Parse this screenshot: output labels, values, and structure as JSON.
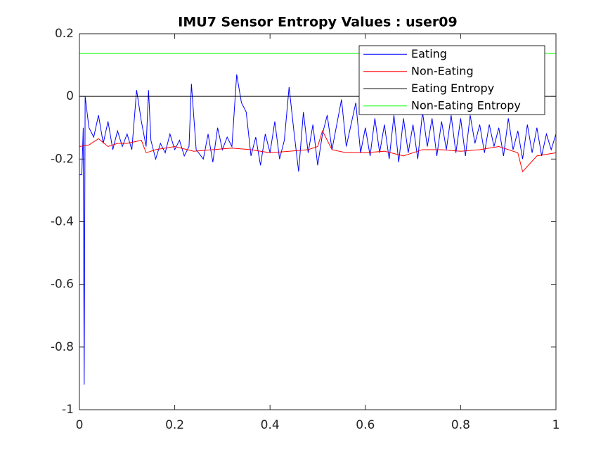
{
  "chart_data": {
    "type": "line",
    "title": "IMU7 Sensor Entropy Values : user09",
    "xlim": [
      0,
      1
    ],
    "ylim": [
      -1,
      0.2
    ],
    "xticks": [
      0,
      0.2,
      0.4,
      0.6,
      0.8,
      1
    ],
    "yticks": [
      -1,
      -0.8,
      -0.6,
      -0.4,
      -0.2,
      0,
      0.2
    ],
    "grid": false,
    "legend": "northeast",
    "series": [
      {
        "name": "Eating",
        "color": "#0000ff",
        "x": [
          0,
          0.005,
          0.008,
          0.01,
          0.012,
          0.02,
          0.03,
          0.04,
          0.05,
          0.06,
          0.07,
          0.08,
          0.09,
          0.1,
          0.11,
          0.12,
          0.13,
          0.14,
          0.145,
          0.15,
          0.16,
          0.17,
          0.18,
          0.19,
          0.2,
          0.21,
          0.22,
          0.23,
          0.235,
          0.245,
          0.26,
          0.27,
          0.28,
          0.29,
          0.3,
          0.31,
          0.32,
          0.33,
          0.34,
          0.35,
          0.36,
          0.37,
          0.38,
          0.39,
          0.4,
          0.41,
          0.42,
          0.43,
          0.44,
          0.45,
          0.46,
          0.47,
          0.48,
          0.49,
          0.5,
          0.51,
          0.52,
          0.53,
          0.55,
          0.56,
          0.57,
          0.58,
          0.59,
          0.6,
          0.61,
          0.62,
          0.63,
          0.64,
          0.65,
          0.66,
          0.67,
          0.68,
          0.69,
          0.7,
          0.71,
          0.72,
          0.73,
          0.74,
          0.75,
          0.76,
          0.77,
          0.78,
          0.79,
          0.8,
          0.81,
          0.82,
          0.83,
          0.84,
          0.85,
          0.86,
          0.87,
          0.88,
          0.89,
          0.9,
          0.91,
          0.92,
          0.93,
          0.94,
          0.95,
          0.96,
          0.97,
          0.98,
          0.99,
          1
        ],
        "values": [
          -0.25,
          -0.25,
          -0.1,
          -0.92,
          0.0,
          -0.1,
          -0.13,
          -0.06,
          -0.15,
          -0.08,
          -0.17,
          -0.11,
          -0.16,
          -0.12,
          -0.17,
          0.02,
          -0.08,
          -0.16,
          0.02,
          -0.14,
          -0.2,
          -0.15,
          -0.18,
          -0.12,
          -0.17,
          -0.14,
          -0.19,
          -0.16,
          0.04,
          -0.17,
          -0.2,
          -0.12,
          -0.21,
          -0.1,
          -0.17,
          -0.13,
          -0.16,
          0.07,
          -0.02,
          -0.05,
          -0.19,
          -0.13,
          -0.22,
          -0.12,
          -0.18,
          -0.08,
          -0.2,
          -0.14,
          0.03,
          -0.11,
          -0.24,
          -0.05,
          -0.18,
          -0.09,
          -0.22,
          -0.12,
          -0.06,
          -0.17,
          -0.01,
          -0.16,
          -0.09,
          -0.02,
          -0.18,
          -0.1,
          -0.19,
          -0.07,
          -0.18,
          -0.09,
          -0.2,
          -0.06,
          -0.21,
          -0.07,
          -0.18,
          -0.09,
          -0.2,
          -0.05,
          -0.16,
          -0.07,
          -0.19,
          -0.08,
          -0.17,
          -0.06,
          -0.18,
          -0.07,
          -0.19,
          -0.06,
          -0.15,
          -0.09,
          -0.18,
          -0.09,
          -0.16,
          -0.1,
          -0.19,
          -0.07,
          -0.17,
          -0.11,
          -0.2,
          -0.09,
          -0.18,
          -0.1,
          -0.19,
          -0.12,
          -0.17,
          -0.12
        ]
      },
      {
        "name": "Non-Eating",
        "color": "#ff0000",
        "x": [
          0,
          0.02,
          0.04,
          0.06,
          0.08,
          0.1,
          0.13,
          0.14,
          0.16,
          0.2,
          0.24,
          0.28,
          0.32,
          0.36,
          0.4,
          0.44,
          0.48,
          0.5,
          0.51,
          0.53,
          0.56,
          0.6,
          0.64,
          0.68,
          0.72,
          0.76,
          0.8,
          0.84,
          0.88,
          0.92,
          0.93,
          0.96,
          1
        ],
        "values": [
          -0.16,
          -0.155,
          -0.135,
          -0.16,
          -0.15,
          -0.15,
          -0.14,
          -0.18,
          -0.17,
          -0.16,
          -0.175,
          -0.17,
          -0.165,
          -0.17,
          -0.18,
          -0.175,
          -0.17,
          -0.16,
          -0.11,
          -0.17,
          -0.18,
          -0.18,
          -0.175,
          -0.19,
          -0.17,
          -0.17,
          -0.175,
          -0.17,
          -0.16,
          -0.18,
          -0.24,
          -0.19,
          -0.18
        ]
      },
      {
        "name": "Eating Entropy",
        "color": "#000000",
        "x": [
          0,
          1
        ],
        "values": [
          0,
          0
        ]
      },
      {
        "name": "Non-Eating Entropy",
        "color": "#00ff00",
        "x": [
          0,
          1
        ],
        "values": [
          0.137,
          0.137
        ]
      }
    ]
  }
}
